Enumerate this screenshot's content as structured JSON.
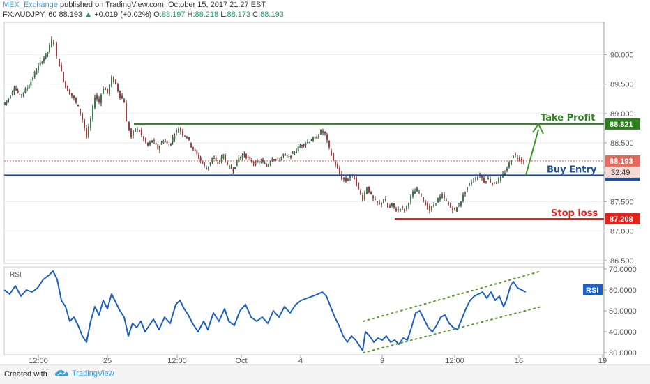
{
  "header": {
    "publisher": "MEX_Exchange",
    "published_text": "published on TradingView.com, October 15, 2017 21:27 EST",
    "symbol": "FX:AUDJPY, 60",
    "last": "88.193",
    "change_arrow": "▲",
    "change": "+0.019 (+0.02%)",
    "o_label": "O:",
    "o_value": "88.197",
    "h_label": "H:",
    "h_value": "88.218",
    "l_label": "L:",
    "l_value": "88.173",
    "c_label": "C:",
    "c_value": "88.193"
  },
  "footer": {
    "created_with": "Created with",
    "brand": "TradingView",
    "brand_icon": "tradingview-cloud-icon"
  },
  "chart_data": [
    {
      "type": "candlestick",
      "panel": "price",
      "price_axis_ticks": [
        "90.000",
        "89.500",
        "89.000",
        "88.500",
        "88.000",
        "87.500",
        "87.000",
        "86.500"
      ],
      "ylim": [
        86.45,
        90.55
      ],
      "x_ticks": [
        "12:00",
        "25",
        "12:00",
        "Oct",
        "4",
        "9",
        "12:00",
        "16",
        "19"
      ],
      "path": [
        [
          0,
          89.15
        ],
        [
          8,
          89.25
        ],
        [
          16,
          89.45
        ],
        [
          24,
          89.3
        ],
        [
          32,
          89.4
        ],
        [
          40,
          89.55
        ],
        [
          48,
          89.75
        ],
        [
          56,
          89.9
        ],
        [
          64,
          90.05
        ],
        [
          70,
          90.25
        ],
        [
          74,
          90.2
        ],
        [
          78,
          89.95
        ],
        [
          84,
          89.7
        ],
        [
          90,
          89.45
        ],
        [
          96,
          89.35
        ],
        [
          102,
          89.25
        ],
        [
          108,
          89.1
        ],
        [
          114,
          88.9
        ],
        [
          120,
          88.6
        ],
        [
          126,
          88.9
        ],
        [
          132,
          89.3
        ],
        [
          138,
          89.2
        ],
        [
          144,
          89.45
        ],
        [
          150,
          89.35
        ],
        [
          156,
          89.6
        ],
        [
          162,
          89.5
        ],
        [
          168,
          89.3
        ],
        [
          174,
          89.2
        ],
        [
          178,
          88.85
        ],
        [
          184,
          88.6
        ],
        [
          190,
          88.75
        ],
        [
          196,
          88.7
        ],
        [
          202,
          88.55
        ],
        [
          208,
          88.45
        ],
        [
          214,
          88.55
        ],
        [
          222,
          88.4
        ],
        [
          230,
          88.55
        ],
        [
          238,
          88.45
        ],
        [
          246,
          88.65
        ],
        [
          252,
          88.75
        ],
        [
          258,
          88.65
        ],
        [
          264,
          88.6
        ],
        [
          270,
          88.45
        ],
        [
          278,
          88.3
        ],
        [
          286,
          88.15
        ],
        [
          292,
          88.05
        ],
        [
          300,
          88.25
        ],
        [
          308,
          88.15
        ],
        [
          316,
          88.3
        ],
        [
          322,
          88.1
        ],
        [
          330,
          88.05
        ],
        [
          338,
          88.25
        ],
        [
          346,
          88.3
        ],
        [
          354,
          88.2
        ],
        [
          362,
          88.15
        ],
        [
          370,
          88.2
        ],
        [
          378,
          88.1
        ],
        [
          386,
          88.25
        ],
        [
          394,
          88.2
        ],
        [
          402,
          88.3
        ],
        [
          410,
          88.25
        ],
        [
          418,
          88.35
        ],
        [
          426,
          88.45
        ],
        [
          434,
          88.5
        ],
        [
          442,
          88.55
        ],
        [
          450,
          88.6
        ],
        [
          456,
          88.7
        ],
        [
          462,
          88.65
        ],
        [
          468,
          88.4
        ],
        [
          474,
          88.2
        ],
        [
          480,
          88.05
        ],
        [
          486,
          87.9
        ],
        [
          492,
          87.85
        ],
        [
          498,
          87.95
        ],
        [
          504,
          87.9
        ],
        [
          510,
          87.7
        ],
        [
          516,
          87.55
        ],
        [
          522,
          87.75
        ],
        [
          528,
          87.6
        ],
        [
          534,
          87.5
        ],
        [
          540,
          87.45
        ],
        [
          546,
          87.55
        ],
        [
          552,
          87.4
        ],
        [
          558,
          87.45
        ],
        [
          564,
          87.35
        ],
        [
          570,
          87.4
        ],
        [
          576,
          87.35
        ],
        [
          582,
          87.5
        ],
        [
          588,
          87.65
        ],
        [
          594,
          87.7
        ],
        [
          600,
          87.6
        ],
        [
          606,
          87.45
        ],
        [
          612,
          87.35
        ],
        [
          618,
          87.45
        ],
        [
          624,
          87.55
        ],
        [
          630,
          87.6
        ],
        [
          636,
          87.5
        ],
        [
          642,
          87.4
        ],
        [
          648,
          87.35
        ],
        [
          654,
          87.45
        ],
        [
          660,
          87.6
        ],
        [
          666,
          87.75
        ],
        [
          672,
          87.85
        ],
        [
          678,
          87.9
        ],
        [
          684,
          87.95
        ],
        [
          690,
          87.85
        ],
        [
          696,
          87.9
        ],
        [
          702,
          87.8
        ],
        [
          708,
          87.85
        ],
        [
          714,
          87.9
        ],
        [
          720,
          88.0
        ],
        [
          726,
          88.15
        ],
        [
          732,
          88.3
        ],
        [
          738,
          88.25
        ],
        [
          744,
          88.2
        ],
        [
          748,
          88.19
        ]
      ],
      "current_price": {
        "value": 88.193,
        "label": "88.193",
        "countdown": "32:49"
      },
      "levels": [
        {
          "name": "Take Profit",
          "label": "Take Profit",
          "price": 88.821,
          "price_label": "88.821",
          "color": "#2e7d1f"
        },
        {
          "name": "Buy Entry",
          "label": "Buy Entry",
          "price": 87.95,
          "price_label": "87.950",
          "color": "#1c4f9c"
        },
        {
          "name": "Stop loss",
          "label": "Stop loss",
          "price": 87.208,
          "price_label": "87.208",
          "color": "#e8201a"
        }
      ],
      "colors": {
        "candle_up": "#3d7a4a",
        "candle_down": "#a63a3a",
        "body": "#6b2f2f",
        "grid": "#e8eef4"
      }
    },
    {
      "type": "line",
      "panel": "indicator",
      "title": "RSI",
      "badge": "RSI",
      "axis_ticks": [
        "70.0000",
        "60.0000",
        "50.0000",
        "40.0000",
        "30.0000"
      ],
      "ylim": [
        29,
        71
      ],
      "color": "#1b5fc4",
      "channel_color": "#5a9a2a",
      "path": [
        [
          0,
          60
        ],
        [
          8,
          58
        ],
        [
          16,
          62
        ],
        [
          24,
          57
        ],
        [
          32,
          60
        ],
        [
          40,
          59
        ],
        [
          48,
          61
        ],
        [
          56,
          65
        ],
        [
          64,
          67
        ],
        [
          70,
          69
        ],
        [
          76,
          65
        ],
        [
          82,
          55
        ],
        [
          88,
          52
        ],
        [
          94,
          45
        ],
        [
          100,
          47
        ],
        [
          106,
          43
        ],
        [
          112,
          38
        ],
        [
          118,
          35
        ],
        [
          124,
          45
        ],
        [
          130,
          52
        ],
        [
          136,
          48
        ],
        [
          142,
          55
        ],
        [
          148,
          51
        ],
        [
          154,
          58
        ],
        [
          160,
          54
        ],
        [
          166,
          50
        ],
        [
          172,
          47
        ],
        [
          178,
          38
        ],
        [
          184,
          44
        ],
        [
          190,
          42
        ],
        [
          196,
          45
        ],
        [
          202,
          40
        ],
        [
          208,
          43
        ],
        [
          214,
          46
        ],
        [
          222,
          41
        ],
        [
          230,
          47
        ],
        [
          238,
          44
        ],
        [
          246,
          53
        ],
        [
          252,
          55
        ],
        [
          258,
          51
        ],
        [
          264,
          48
        ],
        [
          270,
          44
        ],
        [
          278,
          40
        ],
        [
          286,
          45
        ],
        [
          292,
          41
        ],
        [
          300,
          49
        ],
        [
          308,
          45
        ],
        [
          316,
          51
        ],
        [
          322,
          45
        ],
        [
          330,
          43
        ],
        [
          338,
          50
        ],
        [
          346,
          53
        ],
        [
          354,
          47
        ],
        [
          362,
          45
        ],
        [
          370,
          47
        ],
        [
          378,
          44
        ],
        [
          386,
          50
        ],
        [
          394,
          47
        ],
        [
          402,
          52
        ],
        [
          410,
          49
        ],
        [
          418,
          53
        ],
        [
          426,
          55
        ],
        [
          434,
          56
        ],
        [
          442,
          57
        ],
        [
          450,
          58
        ],
        [
          456,
          59
        ],
        [
          462,
          57
        ],
        [
          468,
          52
        ],
        [
          474,
          47
        ],
        [
          480,
          43
        ],
        [
          486,
          38
        ],
        [
          492,
          35
        ],
        [
          498,
          38
        ],
        [
          504,
          36
        ],
        [
          510,
          33
        ],
        [
          514,
          31
        ],
        [
          518,
          40
        ],
        [
          524,
          38
        ],
        [
          530,
          35
        ],
        [
          536,
          37
        ],
        [
          542,
          36
        ],
        [
          548,
          38
        ],
        [
          554,
          35
        ],
        [
          560,
          36
        ],
        [
          566,
          34
        ],
        [
          572,
          37
        ],
        [
          578,
          36
        ],
        [
          584,
          42
        ],
        [
          590,
          49
        ],
        [
          596,
          50
        ],
        [
          602,
          46
        ],
        [
          608,
          42
        ],
        [
          614,
          40
        ],
        [
          620,
          43
        ],
        [
          626,
          47
        ],
        [
          632,
          48
        ],
        [
          638,
          44
        ],
        [
          644,
          42
        ],
        [
          650,
          41
        ],
        [
          656,
          46
        ],
        [
          662,
          51
        ],
        [
          668,
          55
        ],
        [
          674,
          57
        ],
        [
          680,
          58
        ],
        [
          686,
          59
        ],
        [
          692,
          56
        ],
        [
          698,
          59
        ],
        [
          704,
          55
        ],
        [
          710,
          57
        ],
        [
          716,
          52
        ],
        [
          720,
          55
        ],
        [
          726,
          62
        ],
        [
          730,
          64
        ],
        [
          736,
          61
        ],
        [
          742,
          60
        ],
        [
          748,
          59
        ]
      ],
      "channel_upper": [
        [
          515,
          45
        ],
        [
          770,
          69
        ]
      ],
      "channel_lower": [
        [
          515,
          30
        ],
        [
          770,
          52
        ]
      ]
    }
  ]
}
